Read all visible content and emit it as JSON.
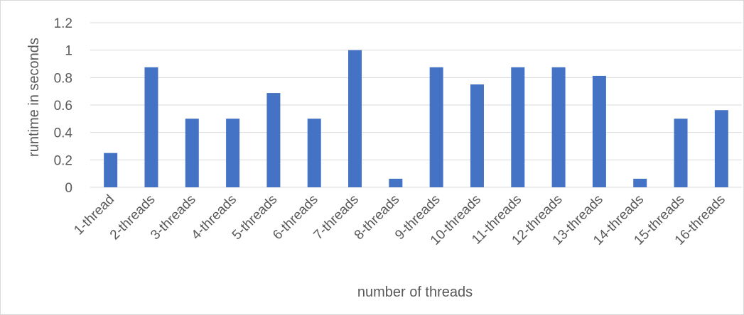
{
  "chart_data": {
    "type": "bar",
    "title": "",
    "xlabel": "number of threads",
    "ylabel": "runtime in seconds",
    "ylim": [
      0,
      1.2
    ],
    "yticks": [
      "0",
      "0.2",
      "0.4",
      "0.6",
      "0.8",
      "1",
      "1.2"
    ],
    "categories": [
      "1-thread",
      "2-threads",
      "3-threads",
      "4-threads",
      "5-threads",
      "6-threads",
      "7-threads",
      "8-threads",
      "9-threads",
      "10-threads",
      "11-threads",
      "12-threads",
      "13-threads",
      "14-threads",
      "15-threads",
      "16-threads"
    ],
    "series": [
      {
        "values": [
          0.25,
          0.875,
          0.5,
          0.5,
          0.6875,
          0.5,
          1.0,
          0.0625,
          0.875,
          0.75,
          0.875,
          0.875,
          0.8125,
          0.0625,
          0.5,
          0.5625
        ],
        "color": "#4472c4"
      }
    ],
    "grid": true,
    "legend": "none"
  }
}
